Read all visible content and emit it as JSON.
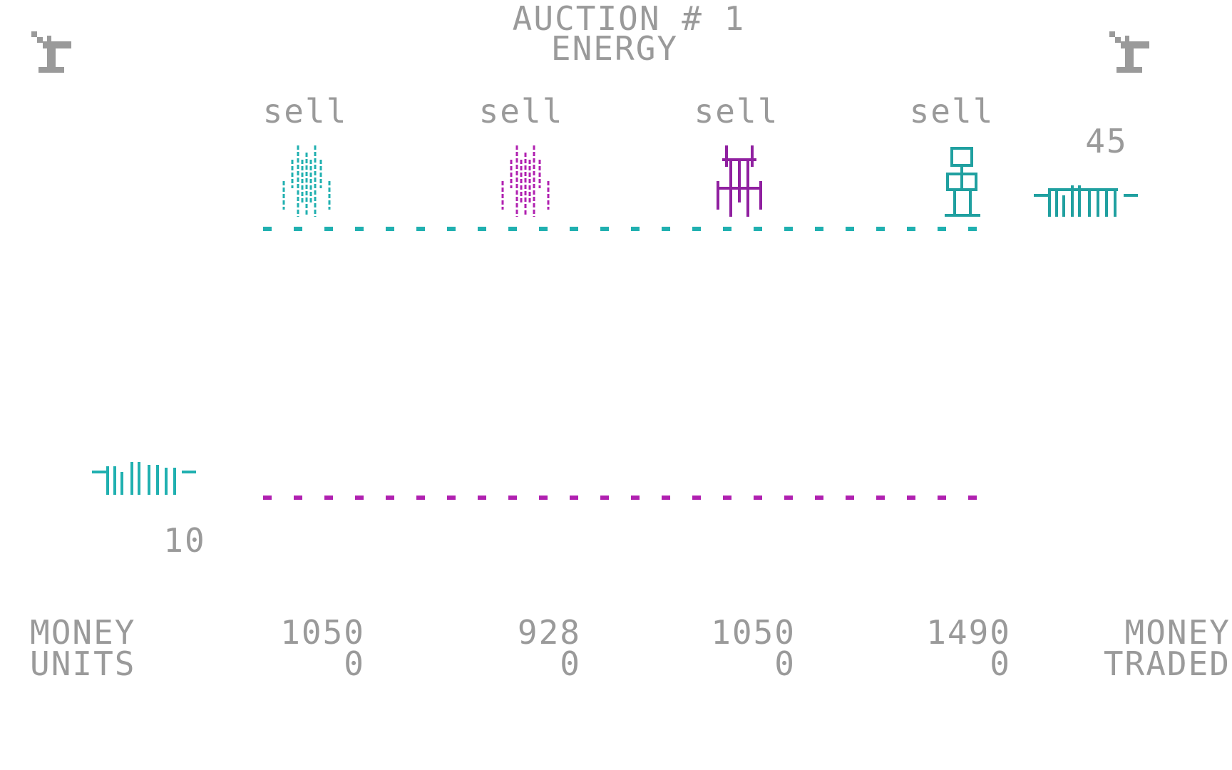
{
  "header": {
    "title": "AUCTION # 1",
    "resource": "ENERGY"
  },
  "icons": {
    "left": "antenna-tower-icon",
    "right": "antenna-tower-icon",
    "store": "store-icon"
  },
  "players": [
    {
      "status": "sell",
      "color": "#20b0b0",
      "money": "1050",
      "units": "0"
    },
    {
      "status": "sell",
      "color": "#b020b0",
      "money": "928",
      "units": "0"
    },
    {
      "status": "sell",
      "color": "#9020a0",
      "money": "1050",
      "units": "0"
    },
    {
      "status": "sell",
      "color": "#20a0a0",
      "money": "1490",
      "units": "0"
    }
  ],
  "store": {
    "sell_price": "45",
    "buy_price": "10"
  },
  "footer": {
    "money_label": "MONEY",
    "units_label": "UNITS",
    "right_label_1": "MONEY",
    "right_label_2": "TRADED"
  },
  "colors": {
    "text": "#9a9a9a",
    "sell_line": "#20b0b0",
    "buy_line": "#b020b0"
  }
}
